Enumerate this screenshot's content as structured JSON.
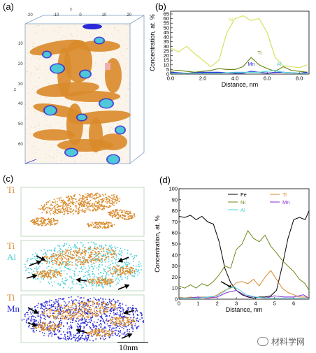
{
  "panels": {
    "a": {
      "label": "(a)",
      "axis_ticks_top": [
        "-20",
        "-10",
        "0",
        "10",
        "20"
      ],
      "axis_ticks_left": [
        "10",
        "20",
        "30",
        "40",
        "50",
        "60"
      ],
      "axis_letter_top": "x",
      "axis_letter_left": "z"
    },
    "b": {
      "label": "(b)"
    },
    "c": {
      "label": "(c)",
      "row1": [
        "Ti"
      ],
      "row2": [
        "Ti",
        "Al"
      ],
      "row3": [
        "Ti",
        "Mn"
      ],
      "scalebar": "10nm"
    },
    "d": {
      "label": "(d)"
    }
  },
  "colors": {
    "ti_orange": "#d98a2a",
    "al_cyan": "#4fd0d8",
    "mn_blue": "#2a2ad8",
    "ni_olive": "#6b8a1a",
    "fe_black": "#000000",
    "ni_yellow": "#d8e060"
  },
  "watermark": "材料学网",
  "chart_data": [
    {
      "type": "line",
      "id": "b",
      "xlabel": "Distance, nm",
      "ylabel": "Concentration, at. %",
      "xlim": [
        0,
        8.6
      ],
      "ylim": [
        0,
        68
      ],
      "xticks": [
        "0.0",
        "2.0",
        "4.0",
        "6.0",
        "8.0"
      ],
      "yticks": [
        "0",
        "5",
        "10",
        "15",
        "20",
        "25",
        "30",
        "35",
        "40",
        "45",
        "50",
        "55",
        "60",
        "65"
      ],
      "series": [
        {
          "name": "Ni",
          "color": "#d8e060",
          "x": [
            0,
            0.5,
            1,
            1.5,
            2,
            2.5,
            3,
            3.5,
            4,
            4.5,
            5,
            5.5,
            6,
            6.5,
            7,
            7.5,
            8,
            8.5
          ],
          "y": [
            28,
            24,
            30,
            22,
            15,
            8,
            15,
            45,
            60,
            63,
            58,
            60,
            45,
            18,
            9,
            8,
            7,
            10
          ]
        },
        {
          "name": "Ti",
          "color": "#6b8a1a",
          "x": [
            0,
            0.5,
            1,
            1.5,
            2,
            2.5,
            3,
            3.5,
            4,
            4.5,
            5,
            5.5,
            6,
            6.5,
            7,
            7.5,
            8,
            8.5
          ],
          "y": [
            3,
            4,
            3,
            2,
            3,
            4,
            6,
            5,
            5,
            8,
            18,
            10,
            6,
            3,
            8,
            4,
            3,
            2
          ]
        },
        {
          "name": "Mn",
          "color": "#2a2ad8",
          "x": [
            0,
            1,
            2,
            3,
            4,
            4.5,
            5,
            5.5,
            6,
            6.5,
            7,
            8,
            8.5
          ],
          "y": [
            2,
            1,
            2,
            2,
            1,
            1,
            3,
            2,
            1,
            2,
            2,
            1,
            2
          ]
        },
        {
          "name": "Al",
          "color": "#4fd0d8",
          "x": [
            0,
            1,
            2,
            3,
            4,
            5,
            5.5,
            6,
            6.5,
            7,
            8,
            8.5
          ],
          "y": [
            1,
            1,
            1,
            1,
            2,
            2,
            2,
            3,
            4,
            2,
            1,
            1
          ]
        }
      ]
    },
    {
      "type": "line",
      "id": "d",
      "xlabel": "Distance, nm",
      "ylabel": "Concentration, at. %",
      "xlim": [
        0,
        6.8
      ],
      "ylim": [
        0,
        100
      ],
      "xticks": [
        "0",
        "1",
        "2",
        "3",
        "4",
        "5",
        "6"
      ],
      "yticks": [
        "0",
        "10",
        "20",
        "30",
        "40",
        "50",
        "60",
        "70",
        "80",
        "90",
        "100"
      ],
      "legend": [
        "Fe",
        "Ti",
        "Ni",
        "Mn",
        "Al"
      ],
      "series": [
        {
          "name": "Fe",
          "color": "#000000",
          "x": [
            0,
            0.3,
            0.6,
            0.9,
            1.2,
            1.5,
            1.8,
            2.1,
            2.4,
            2.7,
            3.0,
            3.3,
            3.6,
            3.9,
            4.2,
            4.5,
            4.8,
            5.1,
            5.4,
            5.7,
            6.0,
            6.3,
            6.6,
            6.8
          ],
          "y": [
            75,
            74,
            76,
            72,
            75,
            70,
            68,
            52,
            28,
            15,
            8,
            4,
            2,
            1,
            2,
            2,
            3,
            8,
            30,
            55,
            72,
            74,
            72,
            80
          ]
        },
        {
          "name": "Ni",
          "color": "#6b8a1a",
          "x": [
            0,
            0.3,
            0.6,
            0.9,
            1.2,
            1.5,
            1.8,
            2.1,
            2.4,
            2.7,
            3.0,
            3.3,
            3.6,
            3.9,
            4.2,
            4.5,
            4.8,
            5.1,
            5.4,
            5.7,
            6.0,
            6.3,
            6.6,
            6.8
          ],
          "y": [
            12,
            10,
            13,
            10,
            14,
            12,
            16,
            22,
            30,
            28,
            45,
            50,
            62,
            55,
            52,
            58,
            48,
            42,
            35,
            30,
            25,
            18,
            14,
            8
          ]
        },
        {
          "name": "Ti",
          "color": "#d98a2a",
          "x": [
            0,
            0.3,
            0.6,
            0.9,
            1.2,
            1.5,
            1.8,
            2.1,
            2.4,
            2.7,
            3.0,
            3.3,
            3.6,
            3.9,
            4.2,
            4.5,
            4.8,
            5.1,
            5.4,
            5.7,
            6.0,
            6.3,
            6.6,
            6.8
          ],
          "y": [
            2,
            1,
            2,
            1,
            2,
            2,
            2,
            5,
            8,
            10,
            15,
            16,
            14,
            18,
            12,
            20,
            26,
            18,
            10,
            6,
            4,
            2,
            2,
            1
          ]
        },
        {
          "name": "Mn",
          "color": "#8a2ad8",
          "x": [
            0,
            0.5,
            1,
            1.5,
            2,
            2.5,
            3,
            3.5,
            4,
            4.5,
            5,
            5.5,
            6,
            6.5,
            6.8
          ],
          "y": [
            1,
            1,
            2,
            1,
            2,
            6,
            8,
            3,
            2,
            1,
            3,
            2,
            2,
            4,
            1
          ]
        },
        {
          "name": "Al",
          "color": "#4fd0d8",
          "x": [
            0,
            0.5,
            1,
            1.5,
            2,
            2.3,
            2.6,
            2.9,
            3.2,
            3.5,
            4,
            4.5,
            5,
            5.5,
            6,
            6.5,
            6.8
          ],
          "y": [
            1,
            1,
            1,
            2,
            3,
            6,
            10,
            11,
            8,
            4,
            2,
            1,
            1,
            1,
            1,
            1,
            1
          ]
        }
      ]
    }
  ]
}
